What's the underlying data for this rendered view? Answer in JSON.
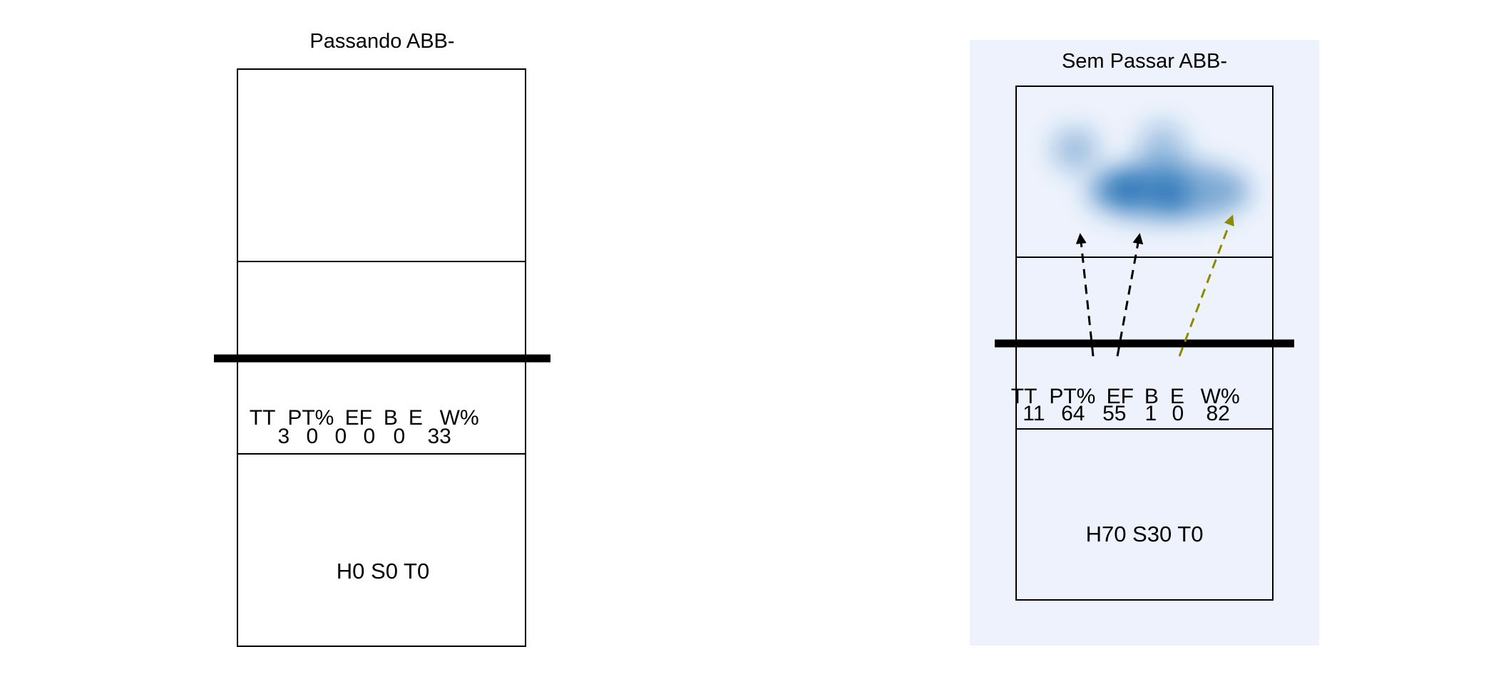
{
  "panels": [
    {
      "id": "left",
      "title": "Passando ABB-",
      "highlighted": false,
      "stats": {
        "headers": [
          "TT",
          "PT%",
          "EF",
          "B",
          "E",
          "W%"
        ],
        "values": [
          "3",
          "0",
          "0",
          "0",
          "0",
          "33"
        ]
      },
      "zone_label": "H0 S0 T0",
      "arrows": []
    },
    {
      "id": "right",
      "title": "Sem Passar ABB-",
      "highlighted": true,
      "stats": {
        "headers": [
          "TT",
          "PT%",
          "EF",
          "B",
          "E",
          "W%"
        ],
        "values": [
          "11",
          "64",
          "55",
          "1",
          "0",
          "82"
        ]
      },
      "zone_label": "H70 S30 T0",
      "arrows": [
        {
          "color": "#000000"
        },
        {
          "color": "#000000"
        },
        {
          "color": "#8b8b00"
        }
      ]
    }
  ],
  "colors": {
    "highlight_background": "#edf2fc",
    "heatmap": "#1f6fb4",
    "court_line": "#000000"
  }
}
